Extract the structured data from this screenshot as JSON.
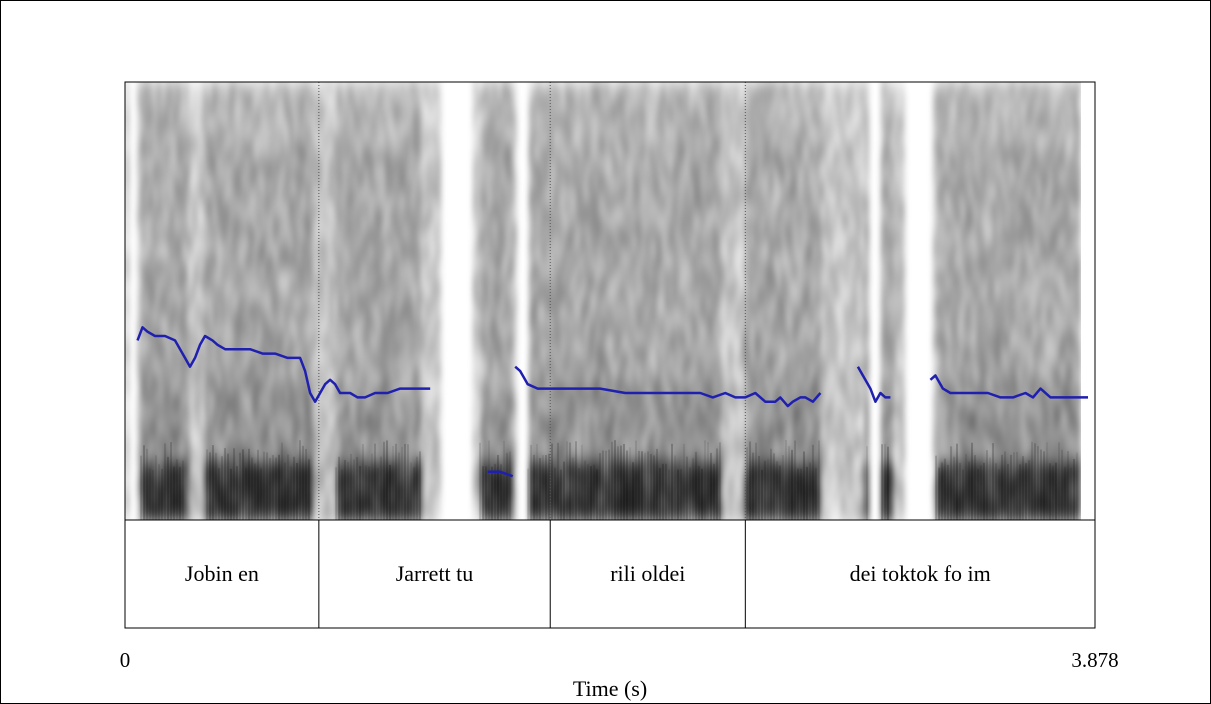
{
  "chart_data": {
    "type": "line",
    "xlabel": "Time (s)",
    "xlim": [
      0,
      3.878
    ],
    "x_tick_labels": [
      "0",
      "3.878"
    ],
    "background": "spectrogram",
    "pitch_color": "#1f1fb0",
    "pitch_ylim": [
      0,
      100
    ],
    "pitch_series": [
      {
        "x": [
          0.05,
          0.07,
          0.09,
          0.12,
          0.16,
          0.2,
          0.24,
          0.26,
          0.28,
          0.3,
          0.32,
          0.35,
          0.37,
          0.4,
          0.45,
          0.5,
          0.55,
          0.6,
          0.65,
          0.7,
          0.72,
          0.74,
          0.76,
          0.78,
          0.8,
          0.82,
          0.84,
          0.86,
          0.88,
          0.9,
          0.93,
          0.96,
          1.0,
          1.05,
          1.1,
          1.15,
          1.19,
          1.22
        ],
        "y": [
          41,
          44,
          43,
          42,
          42,
          41,
          37,
          35,
          37,
          40,
          42,
          41,
          40,
          39,
          39,
          39,
          38,
          38,
          37,
          37,
          34,
          29,
          27,
          29,
          31,
          32,
          31,
          29,
          29,
          29,
          28,
          28,
          29,
          29,
          30,
          30,
          30,
          30
        ]
      },
      {
        "x": [
          1.45,
          1.5,
          1.55
        ],
        "y": [
          11,
          11,
          10
        ]
      },
      {
        "x": [
          1.56,
          1.58,
          1.61,
          1.65,
          1.7,
          1.8,
          1.9,
          2.0,
          2.1,
          2.2,
          2.3,
          2.35,
          2.4,
          2.44,
          2.48,
          2.52,
          2.56,
          2.6,
          2.62,
          2.65,
          2.67,
          2.7,
          2.72,
          2.75,
          2.78
        ],
        "y": [
          35,
          34,
          31,
          30,
          30,
          30,
          30,
          29,
          29,
          29,
          29,
          28,
          29,
          28,
          28,
          29,
          27,
          27,
          28,
          26,
          27,
          28,
          28,
          27,
          29
        ]
      },
      {
        "x": [
          2.93,
          2.95,
          2.98,
          3.0,
          3.02,
          3.04,
          3.06
        ],
        "y": [
          35,
          33,
          30,
          27,
          29,
          28,
          28
        ]
      },
      {
        "x": [
          3.22,
          3.24,
          3.27,
          3.3,
          3.35,
          3.4,
          3.45,
          3.5,
          3.55,
          3.6,
          3.63,
          3.66,
          3.7,
          3.75,
          3.8,
          3.85
        ],
        "y": [
          32,
          33,
          30,
          29,
          29,
          29,
          29,
          28,
          28,
          29,
          28,
          30,
          28,
          28,
          28,
          28
        ]
      }
    ],
    "boundaries": [
      0.775,
      1.7,
      2.48
    ],
    "intervals": [
      {
        "start": 0,
        "end": 0.775,
        "label": "Jobin en"
      },
      {
        "start": 0.775,
        "end": 1.7,
        "label": "Jarrett tu"
      },
      {
        "start": 1.7,
        "end": 2.48,
        "label": "rili oldei"
      },
      {
        "start": 2.48,
        "end": 3.878,
        "label": "dei toktok fo im"
      }
    ]
  }
}
